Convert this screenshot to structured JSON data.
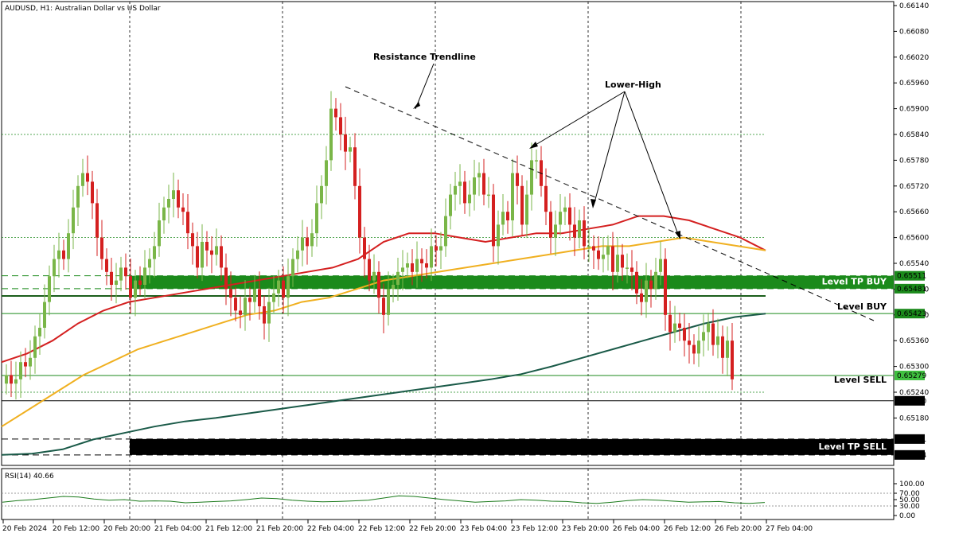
{
  "header": {
    "title": "AUDUSD, H1:  Australian Dollar vs US Dollar"
  },
  "chart_data": {
    "type": "candlestick",
    "symbol": "AUDUSD",
    "timeframe": "H1",
    "ylim": [
      0.65048,
      0.65144
    ],
    "y_ticks": [
      0.6518,
      0.6524,
      0.653,
      0.6536,
      0.6542,
      0.6548,
      0.6554,
      0.656,
      0.6566,
      0.6572,
      0.6578,
      0.6584,
      0.659,
      0.6596,
      0.6602,
      0.6608,
      0.6614
    ],
    "y_tick_labels": [
      "0.65180",
      "0.65240",
      "0.65300",
      "0.65360",
      "0.65420",
      "0.65480",
      "0.65540",
      "0.65600",
      "0.65660",
      "0.65720",
      "0.65780",
      "0.65840",
      "0.65900",
      "0.65960",
      "0.66020",
      "0.66080",
      "0.66140"
    ],
    "x_tick_labels": [
      "20 Feb 2024",
      "20 Feb 12:00",
      "20 Feb 20:00",
      "21 Feb 04:00",
      "21 Feb 12:00",
      "21 Feb 20:00",
      "22 Feb 04:00",
      "22 Feb 12:00",
      "22 Feb 20:00",
      "23 Feb 04:00",
      "23 Feb 12:00",
      "23 Feb 20:00",
      "26 Feb 04:00",
      "26 Feb 12:00",
      "26 Feb 20:00",
      "27 Feb 04:00"
    ],
    "candles_close": [
      0.6528,
      0.6526,
      0.6527,
      0.6531,
      0.653,
      0.6532,
      0.6537,
      0.6539,
      0.6545,
      0.6551,
      0.6555,
      0.6557,
      0.6555,
      0.6561,
      0.6567,
      0.6572,
      0.6575,
      0.6573,
      0.6568,
      0.656,
      0.6555,
      0.6552,
      0.6549,
      0.655,
      0.6553,
      0.6551,
      0.6546,
      0.655,
      0.6549,
      0.6553,
      0.6555,
      0.6558,
      0.6564,
      0.6567,
      0.6569,
      0.6571,
      0.6567,
      0.6566,
      0.6561,
      0.6558,
      0.6553,
      0.6559,
      0.6557,
      0.6556,
      0.6558,
      0.6553,
      0.6548,
      0.6546,
      0.6543,
      0.6542,
      0.6546,
      0.6545,
      0.6548,
      0.6544,
      0.654,
      0.6545,
      0.6547,
      0.655,
      0.6546,
      0.6551,
      0.6555,
      0.6557,
      0.656,
      0.6558,
      0.6561,
      0.6568,
      0.6572,
      0.6578,
      0.659,
      0.6588,
      0.6584,
      0.658,
      0.6581,
      0.6572,
      0.656,
      0.6555,
      0.655,
      0.6552,
      0.6546,
      0.6542,
      0.6548,
      0.6549,
      0.6552,
      0.6553,
      0.6554,
      0.6552,
      0.6555,
      0.6554,
      0.6553,
      0.6558,
      0.6557,
      0.6558,
      0.6565,
      0.657,
      0.6572,
      0.6573,
      0.6568,
      0.657,
      0.6574,
      0.6575,
      0.657,
      0.657,
      0.6558,
      0.6563,
      0.6566,
      0.6564,
      0.6575,
      0.6572,
      0.6563,
      0.657,
      0.6578,
      0.6578,
      0.6572,
      0.6566,
      0.656,
      0.6563,
      0.6566,
      0.6567,
      0.6563,
      0.656,
      0.6564,
      0.6558,
      0.6558,
      0.6557,
      0.6555,
      0.6556,
      0.6558,
      0.6552,
      0.6556,
      0.6553,
      0.6553,
      0.6552,
      0.6547,
      0.6545,
      0.655,
      0.6548,
      0.6552,
      0.6555,
      0.6542,
      0.6538,
      0.654,
      0.6539,
      0.6536,
      0.6535,
      0.6533,
      0.6536,
      0.6538,
      0.654,
      0.6535,
      0.6537,
      0.6532,
      0.6536,
      0.6527
    ],
    "moving_averages": [
      {
        "color": "#d42020",
        "values": [
          0.6531,
          0.6533,
          0.6536,
          0.654,
          0.6543,
          0.6545,
          0.6546,
          0.6547,
          0.6548,
          0.6549,
          0.655,
          0.6551,
          0.6552,
          0.6553,
          0.6555,
          0.6559,
          0.6561,
          0.6561,
          0.656,
          0.6559,
          0.656,
          0.6561,
          0.6561,
          0.6562,
          0.6563,
          0.6565,
          0.6565,
          0.6564,
          0.6562,
          0.656,
          0.6557
        ]
      },
      {
        "color": "#f0b020",
        "values": [
          0.6516,
          0.652,
          0.6524,
          0.6528,
          0.6531,
          0.6534,
          0.6536,
          0.6538,
          0.654,
          0.6542,
          0.6543,
          0.6545,
          0.6546,
          0.6548,
          0.655,
          0.6551,
          0.6552,
          0.6553,
          0.6554,
          0.6555,
          0.6556,
          0.6557,
          0.6558,
          0.6558,
          0.6559,
          0.656,
          0.6559,
          0.6558,
          0.6557
        ]
      },
      {
        "color": "#1a5a48",
        "values": [
          0.65094,
          0.65097,
          0.65107,
          0.6513,
          0.65145,
          0.6516,
          0.65172,
          0.6518,
          0.6519,
          0.652,
          0.6521,
          0.6522,
          0.6523,
          0.6524,
          0.6525,
          0.6526,
          0.6527,
          0.65282,
          0.653,
          0.6532,
          0.6534,
          0.6536,
          0.6538,
          0.654,
          0.65415,
          0.65423
        ]
      }
    ],
    "levels": [
      {
        "price_label": "0.65511",
        "label": "Level TP BUY",
        "color": "#1b8a1b"
      },
      {
        "price_label": "0.65481",
        "label": "",
        "color": "#1b8a1b"
      },
      {
        "price_label": "0.65423",
        "label": "Level BUY",
        "color": "#1b8a1b"
      },
      {
        "price_label": "0.65279",
        "label": "Level SELL",
        "color": "#1b8a1b"
      },
      {
        "price_label": "0.65220",
        "label": "",
        "color": "#000000"
      },
      {
        "price_label": "0.65131",
        "label": "Level TP SELL",
        "color": "#000000"
      },
      {
        "price_label": "0.65094",
        "label": "",
        "color": "#000000"
      }
    ],
    "annotations": [
      "Resistance Trendline",
      "Lower-High"
    ],
    "rsi": {
      "label": "RSI(14) 40.66",
      "ticks": [
        "100.00",
        "70.00",
        "50.00",
        "30.00",
        "0.00"
      ],
      "values": [
        42,
        47,
        50,
        55,
        60,
        58,
        52,
        48,
        50,
        45,
        46,
        45,
        40,
        42,
        44,
        46,
        50,
        55,
        53,
        48,
        45,
        43,
        44,
        46,
        48,
        55,
        62,
        60,
        55,
        50,
        46,
        42,
        44,
        46,
        50,
        48,
        45,
        44,
        40,
        38,
        42,
        47,
        50,
        48,
        45,
        42,
        43,
        44,
        40,
        38,
        41
      ]
    },
    "colors": {
      "bull": "#7ab648",
      "bear": "#d42020",
      "grid": "#000000"
    }
  }
}
